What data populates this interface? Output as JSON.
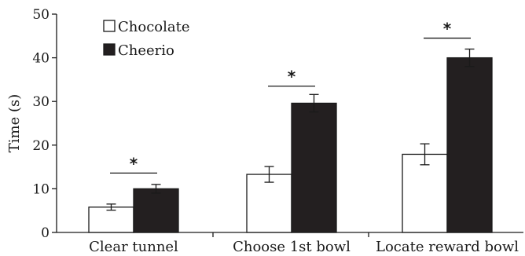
{
  "chart_data": {
    "type": "bar",
    "title": "",
    "xlabel": "",
    "ylabel": "Time (s)",
    "ylim": [
      0,
      50
    ],
    "yticks": [
      0,
      10,
      20,
      30,
      40,
      50
    ],
    "categories": [
      "Clear tunnel",
      "Choose 1st bowl",
      "Locate reward bowl"
    ],
    "series": [
      {
        "name": "Chocolate",
        "color": "#ffffff",
        "values": [
          5.8,
          13.3,
          17.9
        ],
        "errors": [
          0.7,
          1.8,
          2.4
        ]
      },
      {
        "name": "Cheerio",
        "color": "#231f20",
        "values": [
          10.0,
          29.6,
          40.0
        ],
        "errors": [
          1.0,
          2.0,
          2.0
        ]
      }
    ],
    "significance": [
      {
        "category": "Clear tunnel",
        "label": "*",
        "y": 13.6
      },
      {
        "category": "Choose 1st bowl",
        "label": "*",
        "y": 33.5
      },
      {
        "category": "Locate reward bowl",
        "label": "*",
        "y": 44.5
      }
    ],
    "legend": "top-left",
    "grid": false
  }
}
